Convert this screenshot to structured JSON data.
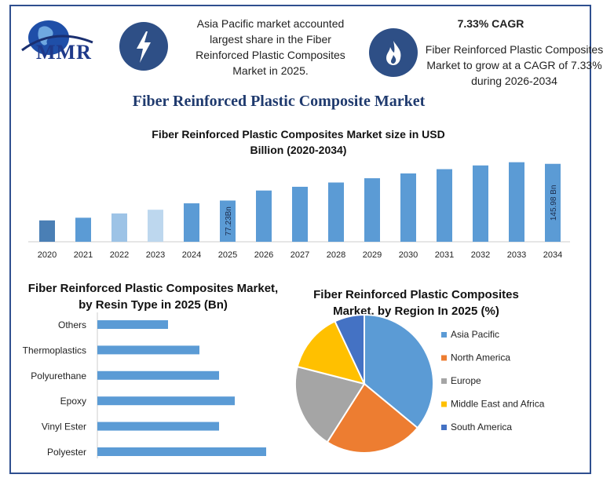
{
  "header": {
    "logo_text": "MMR",
    "info_left": "Asia Pacific market accounted largest share in the Fiber Reinforced Plastic Composites Market in 2025.",
    "cagr_title": "7.33% CAGR",
    "info_right": "Fiber Reinforced Plastic Composites Market to grow at a CAGR of 7.33% during 2026-2034",
    "icon_left": "lightning-bolt-icon",
    "icon_right": "flame-icon"
  },
  "main_title": "Fiber Reinforced Plastic Composite Market",
  "colors": {
    "bar": "#5b9bd5",
    "bar_2020": "#4a7fb5",
    "bar_light": "#9dc3e6",
    "bar_lighter": "#bdd7ee",
    "hbar": "#5b9bd5",
    "frame": "#2f4f8f"
  },
  "chart_data": [
    {
      "type": "bar",
      "title": "Fiber Reinforced Plastic Composites Market size in USD Billion (2020-2034)",
      "categories": [
        "2020",
        "2021",
        "2022",
        "2023",
        "2024",
        "2025",
        "2026",
        "2027",
        "2028",
        "2029",
        "2030",
        "2031",
        "2032",
        "2033",
        "2034"
      ],
      "values": [
        40,
        45,
        53,
        60,
        72,
        77.23,
        96,
        103,
        111,
        119,
        128,
        136,
        143,
        149,
        145.98
      ],
      "data_labels": {
        "2025": "77.23Bn",
        "2034": "145.98 Bn"
      },
      "ylim": [
        0,
        150
      ]
    },
    {
      "type": "bar",
      "orientation": "horizontal",
      "title": "Fiber Reinforced Plastic Composites Market, by Resin Type in 2025 (Bn)",
      "categories": [
        "Others",
        "Thermoplastics",
        "Polyurethane",
        "Epoxy",
        "Vinyl Ester",
        "Polyester"
      ],
      "values": [
        9,
        13,
        15.5,
        17.5,
        15.5,
        21.5
      ],
      "xlim": [
        0,
        22
      ]
    },
    {
      "type": "pie",
      "title": "Fiber Reinforced Plastic Composites Market, by Region In 2025 (%)",
      "labels": [
        "Asia Pacific",
        "North America",
        "Europe",
        "Middle East and Africa",
        "South America"
      ],
      "values": [
        36,
        23,
        20,
        14,
        7
      ],
      "colors": [
        "#5b9bd5",
        "#ed7d31",
        "#a5a5a5",
        "#ffc000",
        "#4472c4"
      ],
      "legend": "right"
    }
  ]
}
